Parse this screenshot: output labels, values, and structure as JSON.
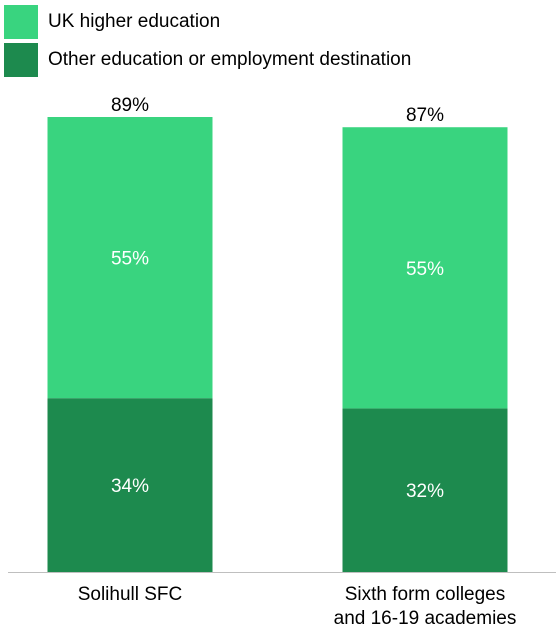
{
  "chart_data": {
    "type": "bar",
    "stacked": true,
    "categories": [
      [
        "Solihull SFC"
      ],
      [
        "Sixth form colleges",
        "and 16-19 academies"
      ]
    ],
    "series": [
      {
        "name": "Other education or employment destination",
        "color": "#1d8a4e",
        "values": [
          34,
          32
        ],
        "labels": [
          "34%",
          "32%"
        ]
      },
      {
        "name": "UK higher education",
        "color": "#39d47f",
        "values": [
          55,
          55
        ],
        "labels": [
          "55%",
          "55%"
        ]
      }
    ],
    "totals": [
      89,
      87
    ],
    "total_labels": [
      "89%",
      "87%"
    ],
    "ylim": [
      0,
      89
    ],
    "legend_position": "top-left",
    "grid": false
  },
  "legend": [
    {
      "label": "UK higher education",
      "color": "#39d47f"
    },
    {
      "label": "Other education or employment destination",
      "color": "#1d8a4e"
    }
  ]
}
